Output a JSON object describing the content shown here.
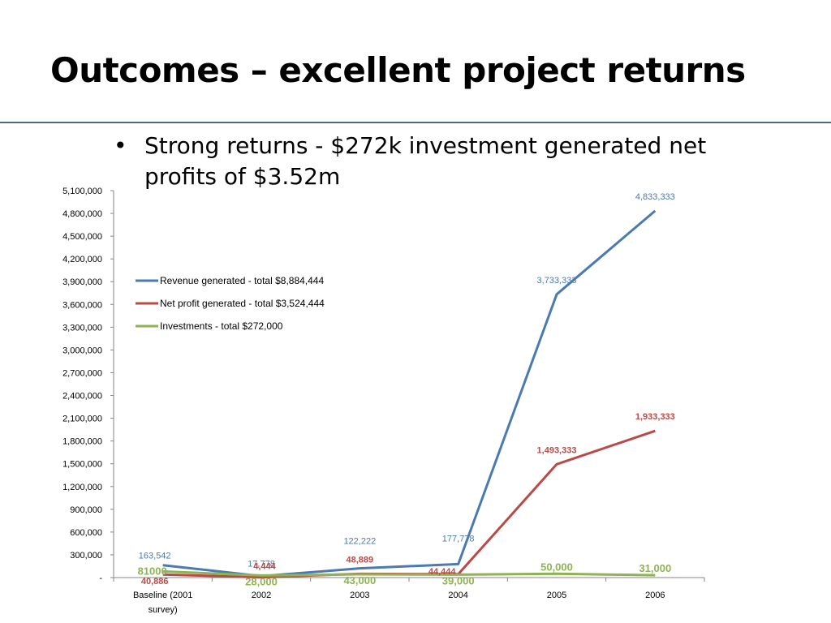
{
  "slide": {
    "title": "Outcomes – excellent project returns",
    "bullet": "Strong returns - $272k investment generated net profits of $3.52m"
  },
  "chart_data": {
    "type": "line",
    "categories": [
      "Baseline (2001 survey)",
      "2002",
      "2003",
      "2004",
      "2005",
      "2006"
    ],
    "category_lines": [
      [
        "Baseline (2001",
        "survey)"
      ],
      [
        "2002"
      ],
      [
        "2003"
      ],
      [
        "2004"
      ],
      [
        "2005"
      ],
      [
        "2006"
      ]
    ],
    "ylim": [
      0,
      5100000
    ],
    "y_ticks": [
      0,
      300000,
      600000,
      900000,
      1200000,
      1500000,
      1800000,
      2100000,
      2400000,
      2700000,
      3000000,
      3300000,
      3600000,
      3900000,
      4200000,
      4500000,
      4800000,
      5100000
    ],
    "y_tick_labels": [
      "-",
      "300,000",
      "600,000",
      "900,000",
      "1,200,000",
      "1,500,000",
      "1,800,000",
      "2,100,000",
      "2,400,000",
      "2,700,000",
      "3,000,000",
      "3,300,000",
      "3,600,000",
      "3,900,000",
      "4,200,000",
      "4,500,000",
      "4,800,000",
      "5,100,000"
    ],
    "grid": false,
    "legend_position": "top-left",
    "series": [
      {
        "name": "Revenue generated - total $8,884,444",
        "color": "#4a7ab0",
        "values": [
          163542,
          17778,
          122222,
          177778,
          3733333,
          4833333
        ],
        "labels": [
          "163,542",
          "17,778",
          "122,222",
          "177,778",
          "3,733,333",
          "4,833,333"
        ]
      },
      {
        "name": "Net profit generated - total $3,524,444",
        "color": "#b94a47",
        "values": [
          40886,
          4444,
          48889,
          44444,
          1493333,
          1933333
        ],
        "labels": [
          "40,886",
          "4,444",
          "48,889",
          "44,444",
          "1,493,333",
          "1,933,333"
        ]
      },
      {
        "name": "Investments - total $272,000",
        "color": "#8eb352",
        "values": [
          81000,
          28000,
          43000,
          39000,
          50000,
          31000
        ],
        "labels": [
          "81000",
          "28,000",
          "43,000",
          "39,000",
          "50,000",
          "31,000"
        ]
      }
    ]
  }
}
